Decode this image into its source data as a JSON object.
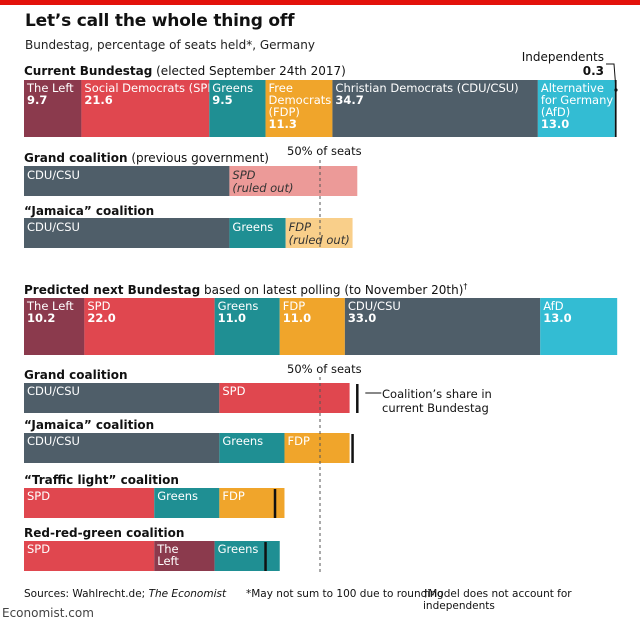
{
  "title": "Let’s call the whole thing off",
  "subtitle": "Bundestag, percentage of seats held*, Germany",
  "sections": {
    "current_bold": "Current Bundestag",
    "current_rest": " (elected September 24th 2017)",
    "grand1_bold": "Grand coalition",
    "grand1_rest": " (previous government)",
    "jamaica1_bold": "“Jamaica” coalition",
    "predicted_bold": "Predicted next Bundestag",
    "predicted_rest": " based on latest polling (to November 20th)",
    "predicted_sup": "†",
    "grand2_bold": "Grand coalition",
    "jamaica2_bold": "“Jamaica” coalition",
    "traffic_bold": "“Traffic light” coalition",
    "rrg_bold": "Red-red-green coalition"
  },
  "annotations": {
    "fifty_label": "50% of seats",
    "independents_label": "Independents",
    "independents_value": "0.3",
    "coalition_share_line1": "Coalition’s share in",
    "coalition_share_line2": "current Bundestag"
  },
  "colors": {
    "left": "#8b3a4d",
    "spd": "#e0474f",
    "greens": "#1f8f93",
    "fdp": "#f0a52b",
    "cdu": "#4f5e69",
    "afd": "#33bcd3",
    "spd_light": "#ec9a98",
    "fdp_light": "#f9cf8a",
    "independents": "#111111",
    "brand_red": "#e3120b"
  },
  "chart_data": {
    "type": "bar",
    "title": "Let’s call the whole thing off",
    "subtitle": "Bundestag, percentage of seats held*, Germany",
    "unit": "percentage of seats held",
    "xlim": [
      0,
      100
    ],
    "reference_line": {
      "value": 50,
      "label": "50% of seats"
    },
    "current_bundestag": [
      {
        "label_lines": [
          "The Left"
        ],
        "value": 9.7,
        "value_label": "9.7",
        "color_key": "left"
      },
      {
        "label_lines": [
          "Social Democrats (SPD)"
        ],
        "value": 21.6,
        "value_label": "21.6",
        "color_key": "spd"
      },
      {
        "label_lines": [
          "Greens"
        ],
        "value": 9.5,
        "value_label": "9.5",
        "color_key": "greens"
      },
      {
        "label_lines": [
          "Free",
          "Democrats",
          "(FDP)"
        ],
        "value": 11.3,
        "value_label": "11.3",
        "color_key": "fdp"
      },
      {
        "label_lines": [
          "Christian Democrats (CDU/CSU)"
        ],
        "value": 34.7,
        "value_label": "34.7",
        "color_key": "cdu"
      },
      {
        "label_lines": [
          "Alternative",
          "for Germany",
          "(AfD)"
        ],
        "value": 13.0,
        "value_label": "13.0",
        "color_key": "afd"
      },
      {
        "label_lines": [],
        "value": 0.3,
        "value_label": "",
        "color_key": "independents"
      }
    ],
    "current_coalitions": [
      {
        "name": "Grand coalition (previous government)",
        "segments": [
          {
            "label_lines": [
              "CDU/CSU"
            ],
            "value": 34.7,
            "color_key": "cdu",
            "italic": false
          },
          {
            "label_lines": [
              "SPD",
              "(ruled out)"
            ],
            "value": 21.6,
            "color_key": "spd_light",
            "italic": true
          }
        ]
      },
      {
        "name": "“Jamaica” coalition",
        "segments": [
          {
            "label_lines": [
              "CDU/CSU"
            ],
            "value": 34.7,
            "color_key": "cdu",
            "italic": false
          },
          {
            "label_lines": [
              "Greens"
            ],
            "value": 9.5,
            "color_key": "greens",
            "italic": false
          },
          {
            "label_lines": [
              "FDP",
              "(ruled out)"
            ],
            "value": 11.3,
            "color_key": "fdp_light",
            "italic": true
          }
        ]
      }
    ],
    "predicted_bundestag": [
      {
        "label_lines": [
          "The Left"
        ],
        "value": 10.2,
        "value_label": "10.2",
        "color_key": "left"
      },
      {
        "label_lines": [
          "SPD"
        ],
        "value": 22.0,
        "value_label": "22.0",
        "color_key": "spd"
      },
      {
        "label_lines": [
          "Greens"
        ],
        "value": 11.0,
        "value_label": "11.0",
        "color_key": "greens"
      },
      {
        "label_lines": [
          "FDP"
        ],
        "value": 11.0,
        "value_label": "11.0",
        "color_key": "fdp"
      },
      {
        "label_lines": [
          "CDU/CSU"
        ],
        "value": 33.0,
        "value_label": "33.0",
        "color_key": "cdu"
      },
      {
        "label_lines": [
          "AfD"
        ],
        "value": 13.0,
        "value_label": "13.0",
        "color_key": "afd"
      }
    ],
    "predicted_coalitions": [
      {
        "name": "Grand coalition",
        "current_share": 56.3,
        "segments": [
          {
            "label_lines": [
              "CDU/CSU"
            ],
            "value": 33.0,
            "color_key": "cdu"
          },
          {
            "label_lines": [
              "SPD"
            ],
            "value": 22.0,
            "color_key": "spd"
          }
        ]
      },
      {
        "name": "“Jamaica” coalition",
        "current_share": 55.5,
        "segments": [
          {
            "label_lines": [
              "CDU/CSU"
            ],
            "value": 33.0,
            "color_key": "cdu"
          },
          {
            "label_lines": [
              "Greens"
            ],
            "value": 11.0,
            "color_key": "greens"
          },
          {
            "label_lines": [
              "FDP"
            ],
            "value": 11.0,
            "color_key": "fdp"
          }
        ]
      },
      {
        "name": "“Traffic light” coalition",
        "current_share": 42.4,
        "segments": [
          {
            "label_lines": [
              "SPD"
            ],
            "value": 22.0,
            "color_key": "spd"
          },
          {
            "label_lines": [
              "Greens"
            ],
            "value": 11.0,
            "color_key": "greens"
          },
          {
            "label_lines": [
              "FDP"
            ],
            "value": 11.0,
            "color_key": "fdp"
          }
        ]
      },
      {
        "name": "Red-red-green coalition",
        "current_share": 40.8,
        "segments": [
          {
            "label_lines": [
              "SPD"
            ],
            "value": 22.0,
            "color_key": "spd"
          },
          {
            "label_lines": [
              "The",
              "Left"
            ],
            "value": 10.2,
            "color_key": "left"
          },
          {
            "label_lines": [
              "Greens"
            ],
            "value": 11.0,
            "color_key": "greens"
          }
        ]
      }
    ]
  },
  "footer": {
    "sources_prefix": "Sources: Wahlrecht.de; ",
    "sources_italic": "The Economist",
    "note1": "*May not sum to 100 due to rounding",
    "note2": "†Model does not account for independents",
    "brand": "Economist.com"
  }
}
